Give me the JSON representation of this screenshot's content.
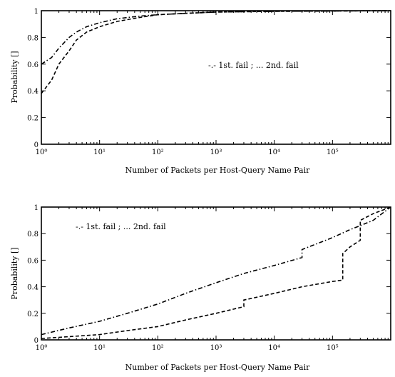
{
  "chart_data": [
    {
      "type": "line",
      "title": "",
      "xlabel": "Number of Packets per Host-Query Name Pair",
      "ylabel": "Probability []",
      "xscale": "log",
      "xlim": [
        1,
        1000000
      ],
      "ylim": [
        0,
        1
      ],
      "xticks": [
        "10⁰",
        "10¹",
        "10²",
        "10³",
        "10⁴",
        "10⁵"
      ],
      "yticks": [
        "0",
        "0.2",
        "0.4",
        "0.6",
        "0.8",
        "1"
      ],
      "legend": {
        "text": "-.- 1st. fail ; ... 2nd. fail",
        "placement": "right-middle"
      },
      "series": [
        {
          "name": "1st. fail",
          "style": "dashdot",
          "x": [
            1,
            1.5,
            2,
            3,
            4,
            6,
            10,
            20,
            50,
            100,
            300,
            1000,
            10000,
            1000000
          ],
          "y": [
            0.6,
            0.65,
            0.72,
            0.8,
            0.84,
            0.88,
            0.91,
            0.94,
            0.96,
            0.97,
            0.98,
            0.99,
            0.995,
            1.0
          ]
        },
        {
          "name": "2nd. fail",
          "style": "dashed",
          "x": [
            1,
            1.5,
            2,
            3,
            4,
            6,
            10,
            20,
            50,
            100,
            300,
            1000,
            10000,
            1000000
          ],
          "y": [
            0.38,
            0.48,
            0.6,
            0.7,
            0.78,
            0.84,
            0.88,
            0.92,
            0.95,
            0.97,
            0.98,
            0.99,
            0.995,
            1.0
          ]
        }
      ]
    },
    {
      "type": "line",
      "title": "",
      "xlabel": "Number of Packets per Host-Query Name Pair",
      "ylabel": "Probability []",
      "xscale": "log",
      "xlim": [
        1,
        1000000
      ],
      "ylim": [
        0,
        1
      ],
      "xticks": [
        "10⁰",
        "10¹",
        "10²",
        "10³",
        "10⁴",
        "10⁵"
      ],
      "yticks": [
        "0",
        "0.2",
        "0.4",
        "0.6",
        "0.8",
        "1"
      ],
      "legend": {
        "text": "-.- 1st. fail ; ... 2nd. fail",
        "placement": "top-left"
      },
      "series": [
        {
          "name": "1st. fail",
          "style": "dashdot",
          "x": [
            1,
            3,
            10,
            30,
            100,
            300,
            1000,
            3000,
            10000,
            30000,
            30001,
            100000,
            200000,
            300000,
            500000,
            1000000
          ],
          "y": [
            0.04,
            0.09,
            0.14,
            0.2,
            0.27,
            0.35,
            0.43,
            0.5,
            0.56,
            0.62,
            0.68,
            0.77,
            0.83,
            0.86,
            0.9,
            1.0
          ]
        },
        {
          "name": "2nd. fail",
          "style": "dashed",
          "x": [
            1,
            10,
            30,
            100,
            300,
            1000,
            3000,
            3001,
            10000,
            30000,
            100000,
            150000,
            150001,
            200000,
            300000,
            300001,
            500000,
            1000000
          ],
          "y": [
            0.01,
            0.04,
            0.07,
            0.1,
            0.15,
            0.2,
            0.25,
            0.3,
            0.35,
            0.4,
            0.44,
            0.45,
            0.65,
            0.7,
            0.75,
            0.9,
            0.95,
            1.0
          ]
        }
      ]
    }
  ]
}
